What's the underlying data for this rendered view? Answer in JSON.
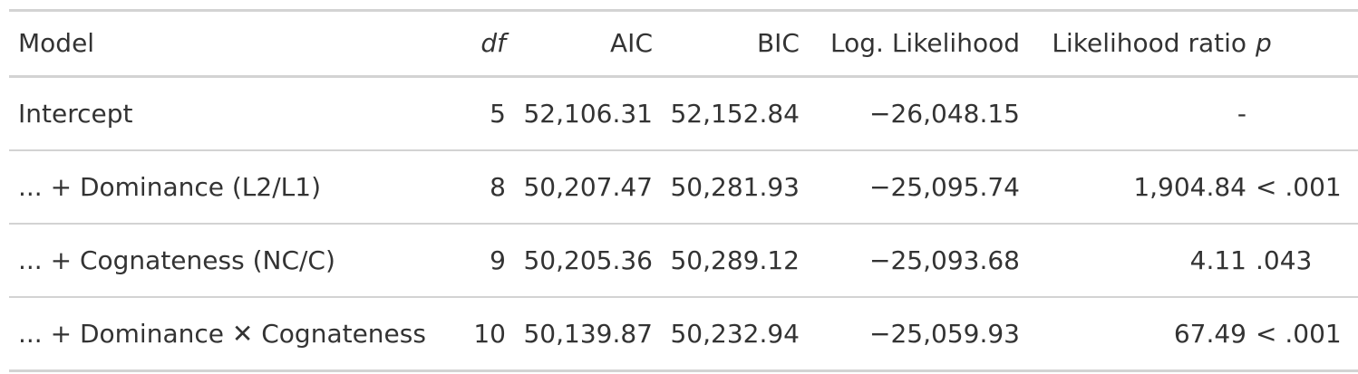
{
  "table": {
    "headers": {
      "model": "Model",
      "df": "df",
      "aic": "AIC",
      "bic": "BIC",
      "loglik": "Log. Likelihood",
      "lr": "Likelihood ratio",
      "p": "p"
    },
    "rows": [
      {
        "model": "Intercept",
        "df": "5",
        "aic": "52,106.31",
        "bic": "52,152.84",
        "loglik": "−26,048.15",
        "lr": "-",
        "p": ""
      },
      {
        "model": "... + Dominance (L2/L1)",
        "df": "8",
        "aic": "50,207.47",
        "bic": "50,281.93",
        "loglik": "−25,095.74",
        "lr": "1,904.84",
        "p": "< .001"
      },
      {
        "model": "... + Cognateness (NC/C)",
        "df": "9",
        "aic": "50,205.36",
        "bic": "50,289.12",
        "loglik": "−25,093.68",
        "lr": "4.11",
        "p": ".043"
      },
      {
        "model": "... + Dominance ✕ Cognateness",
        "df": "10",
        "aic": "50,139.87",
        "bic": "50,232.94",
        "loglik": "−25,059.93",
        "lr": "67.49",
        "p": "< .001"
      }
    ]
  }
}
